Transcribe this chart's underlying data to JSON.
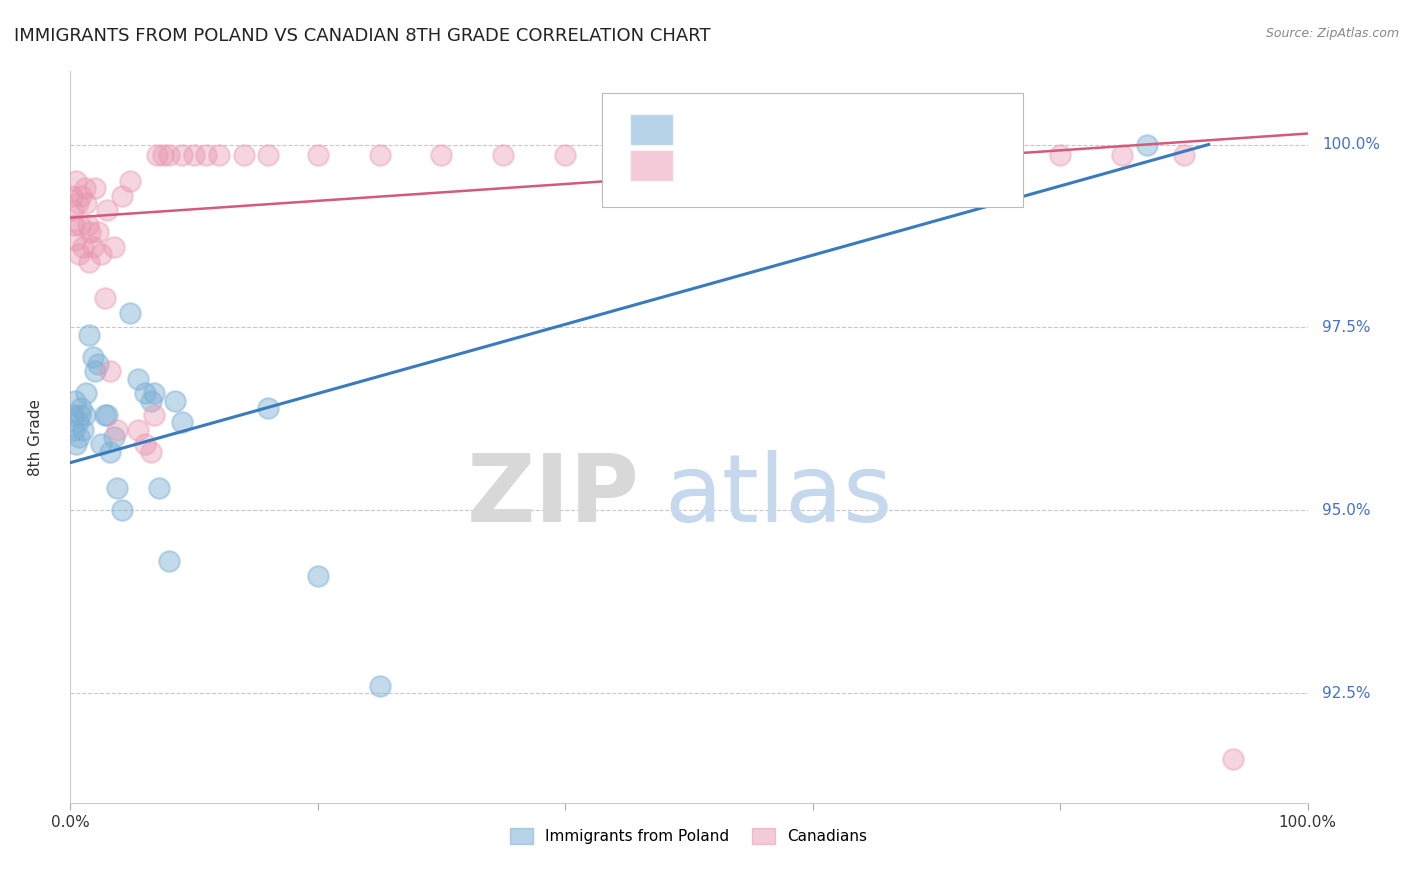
{
  "title": "IMMIGRANTS FROM POLAND VS CANADIAN 8TH GRADE CORRELATION CHART",
  "source": "Source: ZipAtlas.com",
  "ylabel": "8th Grade",
  "yticks": [
    92.5,
    95.0,
    97.5,
    100.0
  ],
  "ytick_labels": [
    "92.5%",
    "95.0%",
    "97.5%",
    "100.0%"
  ],
  "xlim": [
    0.0,
    1.0
  ],
  "ylim": [
    91.0,
    101.0
  ],
  "blue_color": "#7bafd4",
  "pink_color": "#e896b0",
  "blue_line_color": "#3a7abf",
  "pink_line_color": "#d45a7a",
  "legend_label1": "Immigrants from Poland",
  "legend_label2": "Canadians",
  "blue_points_x": [
    0.002,
    0.003,
    0.004,
    0.005,
    0.006,
    0.007,
    0.008,
    0.009,
    0.01,
    0.012,
    0.013,
    0.015,
    0.018,
    0.02,
    0.022,
    0.025,
    0.028,
    0.03,
    0.032,
    0.035,
    0.038,
    0.042,
    0.048,
    0.055,
    0.06,
    0.065,
    0.068,
    0.072,
    0.08,
    0.085,
    0.09,
    0.16,
    0.2,
    0.25,
    0.87
  ],
  "blue_points_y": [
    96.3,
    96.1,
    96.5,
    95.9,
    96.2,
    96.0,
    96.3,
    96.4,
    96.1,
    96.3,
    96.6,
    97.4,
    97.1,
    96.9,
    97.0,
    95.9,
    96.3,
    96.3,
    95.8,
    96.0,
    95.3,
    95.0,
    97.7,
    96.8,
    96.6,
    96.5,
    96.6,
    95.3,
    94.3,
    96.5,
    96.2,
    96.4,
    94.1,
    92.6,
    100.0
  ],
  "pink_points_x": [
    0.001,
    0.002,
    0.003,
    0.004,
    0.005,
    0.006,
    0.007,
    0.008,
    0.009,
    0.01,
    0.012,
    0.013,
    0.014,
    0.015,
    0.016,
    0.018,
    0.02,
    0.022,
    0.025,
    0.028,
    0.03,
    0.032,
    0.035,
    0.038,
    0.042,
    0.048,
    0.055,
    0.06,
    0.065,
    0.068,
    0.07,
    0.075,
    0.08,
    0.09,
    0.1,
    0.11,
    0.12,
    0.14,
    0.16,
    0.2,
    0.25,
    0.3,
    0.35,
    0.4,
    0.45,
    0.5,
    0.6,
    0.65,
    0.7,
    0.75,
    0.8,
    0.85,
    0.9,
    0.94
  ],
  "pink_points_y": [
    99.3,
    99.1,
    98.9,
    98.7,
    99.5,
    99.2,
    98.5,
    98.9,
    99.3,
    98.6,
    99.4,
    99.2,
    98.9,
    98.4,
    98.8,
    98.6,
    99.4,
    98.8,
    98.5,
    97.9,
    99.1,
    96.9,
    98.6,
    96.1,
    99.3,
    99.5,
    96.1,
    95.9,
    95.8,
    96.3,
    99.85,
    99.85,
    99.85,
    99.85,
    99.85,
    99.85,
    99.85,
    99.85,
    99.85,
    99.85,
    99.85,
    99.85,
    99.85,
    99.85,
    99.85,
    99.85,
    99.85,
    99.85,
    99.85,
    99.85,
    99.85,
    99.85,
    99.85,
    91.6
  ],
  "blue_trendline_x": [
    0.0,
    0.92
  ],
  "blue_trendline_y": [
    95.65,
    100.0
  ],
  "pink_trendline_x": [
    0.0,
    1.0
  ],
  "pink_trendline_y": [
    99.0,
    100.15
  ],
  "watermark_zip": "ZIP",
  "watermark_atlas": "atlas",
  "watermark_zip_color": "#d8d8d8",
  "watermark_atlas_color": "#c5d8ed",
  "background_color": "#ffffff",
  "ytick_color": "#4472c4",
  "title_fontsize": 13,
  "label_fontsize": 10.5
}
